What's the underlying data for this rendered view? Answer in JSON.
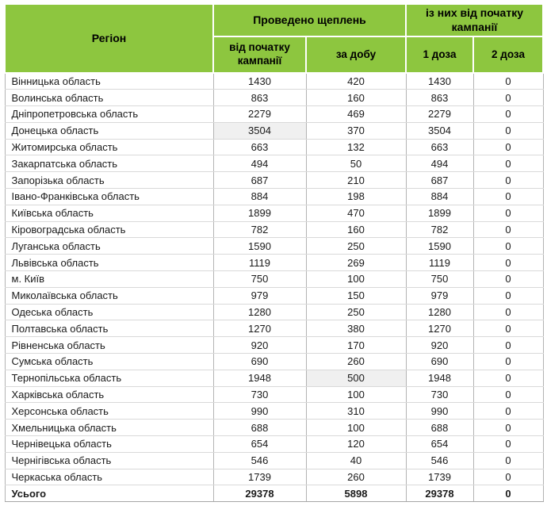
{
  "colors": {
    "header_bg": "#8dc63f",
    "highlight_bg": "#f0f0f0",
    "vertical_line": "#b3b3b3",
    "horizontal_line": "#d9d9d9",
    "footer_line": "#808080"
  },
  "chart_data": {
    "type": "table",
    "header": {
      "region_label": "Регіон",
      "groups": [
        {
          "label": "Проведено щеплень",
          "children": [
            "від початку кампанії",
            "за добу"
          ]
        },
        {
          "label": "із них від початку кампанії",
          "children": [
            "1 доза",
            "2 доза"
          ]
        }
      ]
    },
    "rows": [
      {
        "region": "Вінницька область",
        "values": [
          1430,
          420,
          1430,
          0
        ],
        "highlight_col": null
      },
      {
        "region": "Волинська область",
        "values": [
          863,
          160,
          863,
          0
        ],
        "highlight_col": null
      },
      {
        "region": "Дніпропетровська область",
        "values": [
          2279,
          469,
          2279,
          0
        ],
        "highlight_col": null
      },
      {
        "region": "Донецька область",
        "values": [
          3504,
          370,
          3504,
          0
        ],
        "highlight_col": 0
      },
      {
        "region": "Житомирська область",
        "values": [
          663,
          132,
          663,
          0
        ],
        "highlight_col": null
      },
      {
        "region": "Закарпатська область",
        "values": [
          494,
          50,
          494,
          0
        ],
        "highlight_col": null
      },
      {
        "region": "Запорізька область",
        "values": [
          687,
          210,
          687,
          0
        ],
        "highlight_col": null
      },
      {
        "region": "Івано-Франківська область",
        "values": [
          884,
          198,
          884,
          0
        ],
        "highlight_col": null
      },
      {
        "region": "Київська область",
        "values": [
          1899,
          470,
          1899,
          0
        ],
        "highlight_col": null
      },
      {
        "region": "Кіровоградська область",
        "values": [
          782,
          160,
          782,
          0
        ],
        "highlight_col": null
      },
      {
        "region": "Луганська область",
        "values": [
          1590,
          250,
          1590,
          0
        ],
        "highlight_col": null
      },
      {
        "region": "Львівська область",
        "values": [
          1119,
          269,
          1119,
          0
        ],
        "highlight_col": null
      },
      {
        "region": "м. Київ",
        "values": [
          750,
          100,
          750,
          0
        ],
        "highlight_col": null
      },
      {
        "region": "Миколаївська область",
        "values": [
          979,
          150,
          979,
          0
        ],
        "highlight_col": null
      },
      {
        "region": "Одеська область",
        "values": [
          1280,
          250,
          1280,
          0
        ],
        "highlight_col": null
      },
      {
        "region": "Полтавська область",
        "values": [
          1270,
          380,
          1270,
          0
        ],
        "highlight_col": null
      },
      {
        "region": "Рівненська область",
        "values": [
          920,
          170,
          920,
          0
        ],
        "highlight_col": null
      },
      {
        "region": "Сумська область",
        "values": [
          690,
          260,
          690,
          0
        ],
        "highlight_col": null
      },
      {
        "region": "Тернопільська область",
        "values": [
          1948,
          500,
          1948,
          0
        ],
        "highlight_col": 1
      },
      {
        "region": "Харківська область",
        "values": [
          730,
          100,
          730,
          0
        ],
        "highlight_col": null
      },
      {
        "region": "Херсонська область",
        "values": [
          990,
          310,
          990,
          0
        ],
        "highlight_col": null
      },
      {
        "region": "Хмельницька область",
        "values": [
          688,
          100,
          688,
          0
        ],
        "highlight_col": null
      },
      {
        "region": "Чернівецька область",
        "values": [
          654,
          120,
          654,
          0
        ],
        "highlight_col": null
      },
      {
        "region": "Чернігівська область",
        "values": [
          546,
          40,
          546,
          0
        ],
        "highlight_col": null
      },
      {
        "region": "Черкаська область",
        "values": [
          1739,
          260,
          1739,
          0
        ],
        "highlight_col": null
      }
    ],
    "footer": {
      "label": "Усього",
      "values": [
        29378,
        5898,
        29378,
        0
      ]
    },
    "layout_hints": {
      "header_bg": "#8dc63f",
      "highlighted_cells": [
        {
          "row": "Донецька область",
          "column": "від початку кампанії"
        },
        {
          "row": "Тернопільська область",
          "column": "за добу"
        }
      ]
    }
  }
}
